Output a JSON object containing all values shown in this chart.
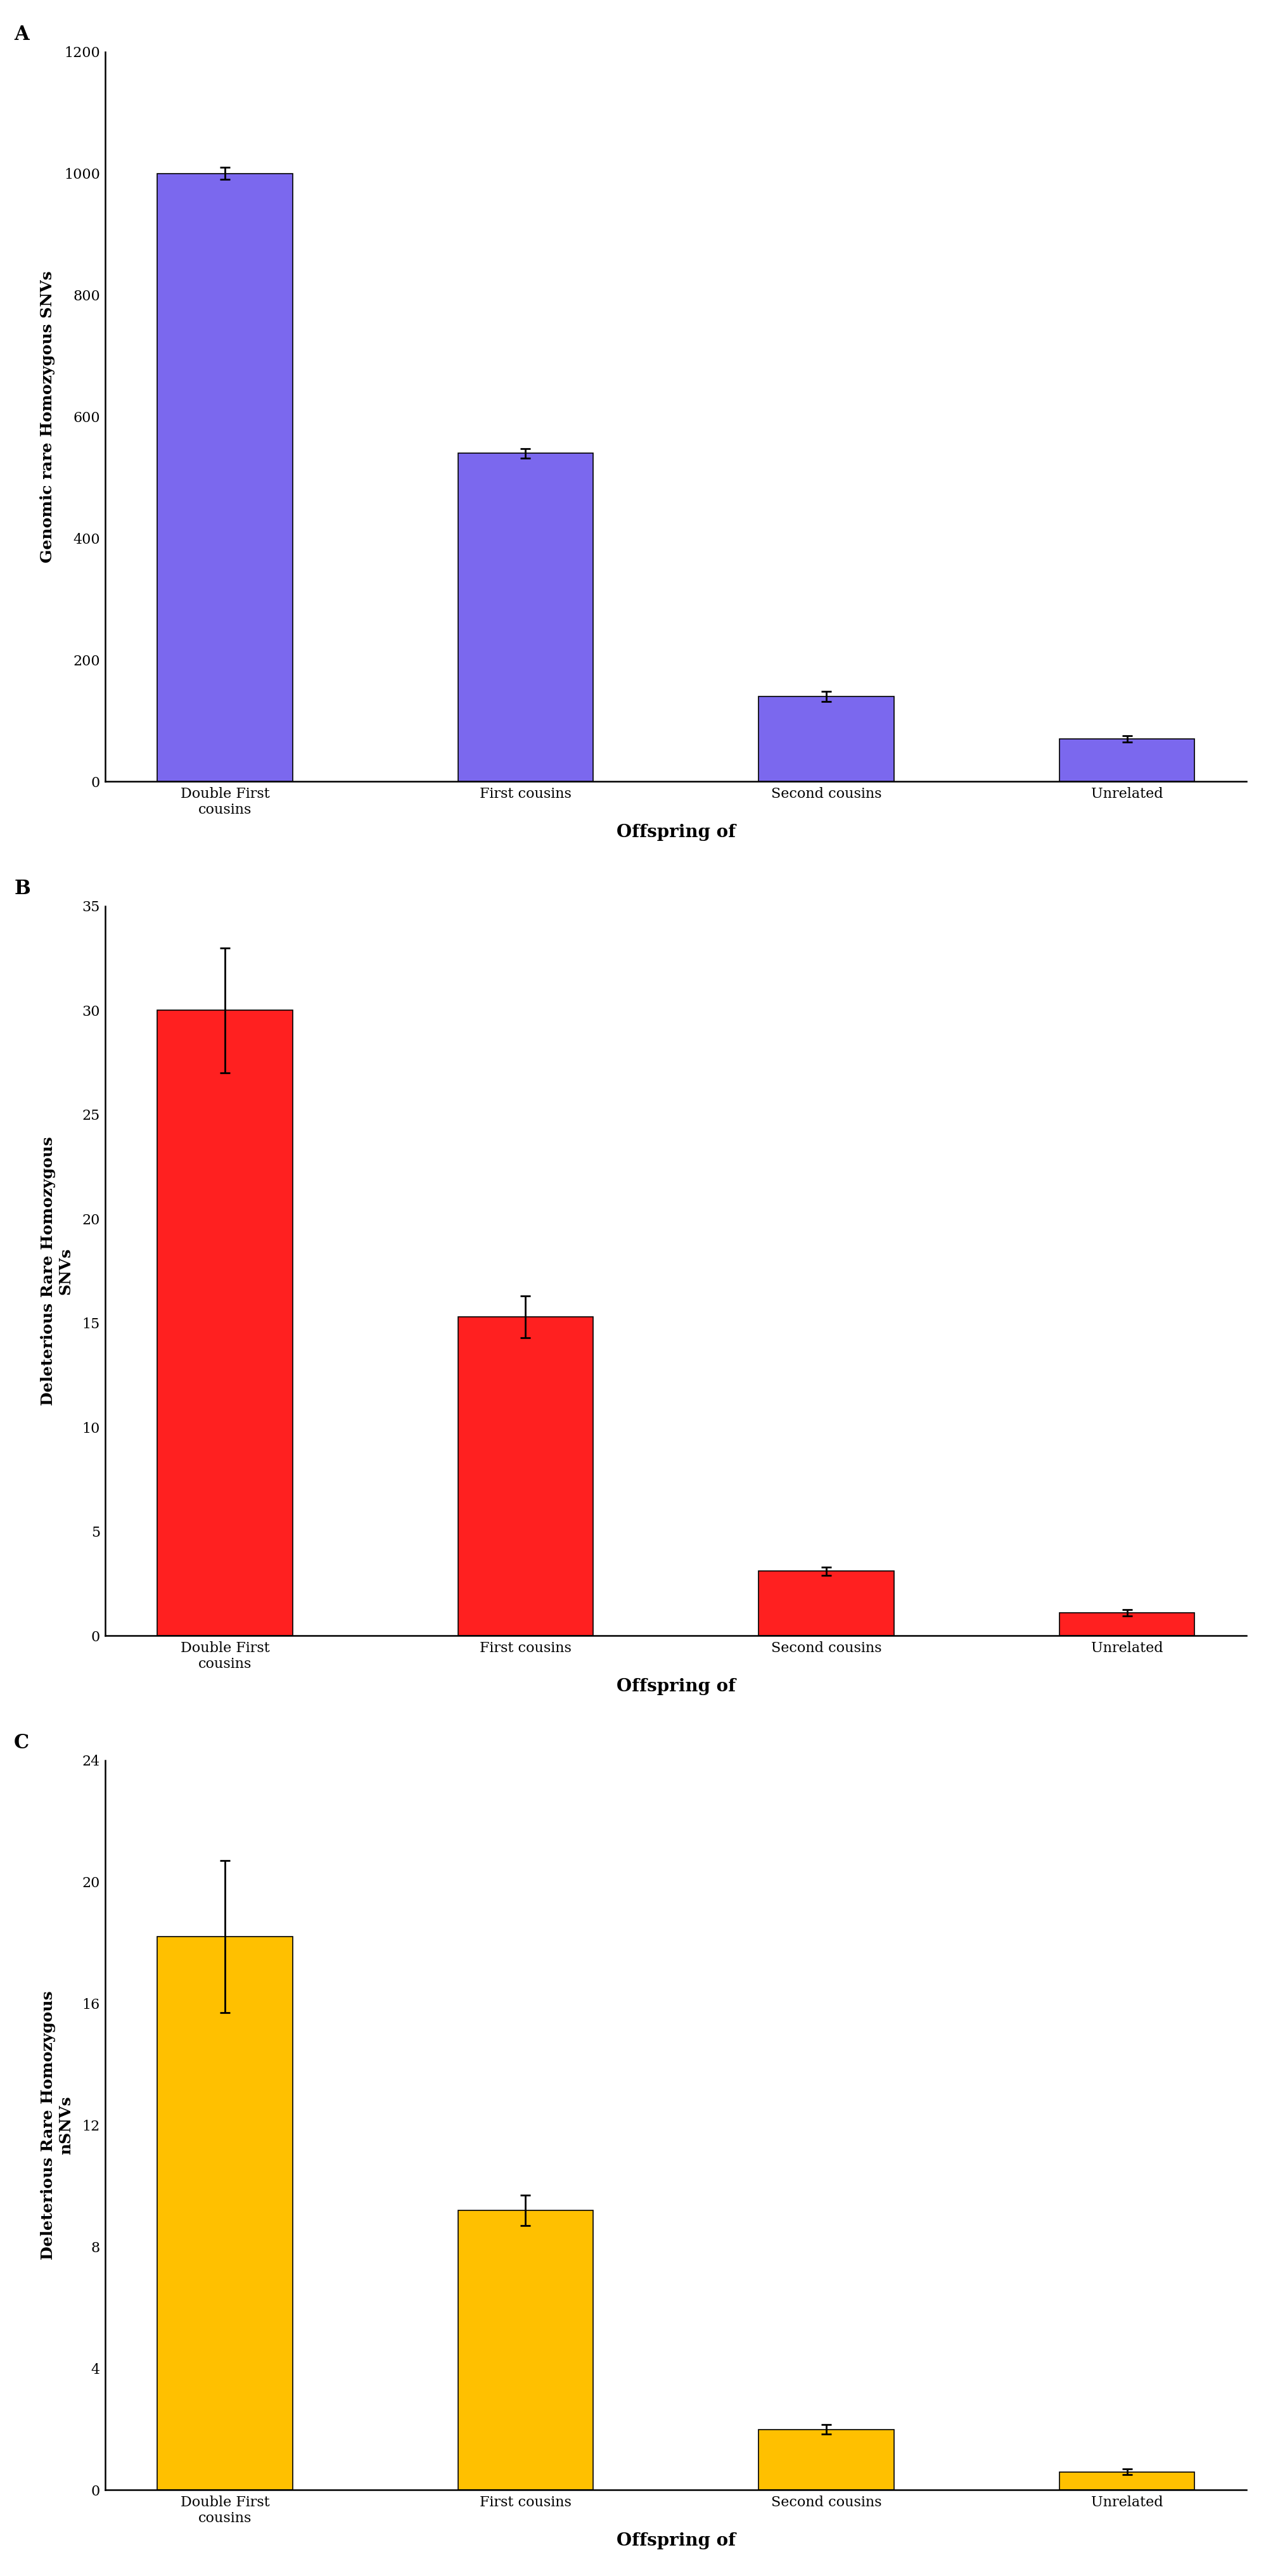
{
  "panel_A": {
    "values": [
      1000,
      540,
      140,
      70
    ],
    "errors": [
      10,
      8,
      8,
      5
    ],
    "color": "#7B68EE",
    "ylabel": "Genomic rare Homozygous SNVs",
    "ylim": [
      0,
      1200
    ],
    "yticks": [
      0,
      200,
      400,
      600,
      800,
      1000,
      1200
    ],
    "label": "A"
  },
  "panel_B": {
    "values": [
      30,
      15.3,
      3.1,
      1.1
    ],
    "errors": [
      3.0,
      1.0,
      0.2,
      0.15
    ],
    "color": "#FF2020",
    "ylabel": "Deleterious Rare Homozygous\nSNVs",
    "ylim": [
      0,
      35
    ],
    "yticks": [
      0,
      5,
      10,
      15,
      20,
      25,
      30,
      35
    ],
    "label": "B"
  },
  "panel_C": {
    "values": [
      18.2,
      9.2,
      2.0,
      0.6
    ],
    "errors": [
      2.5,
      0.5,
      0.15,
      0.1
    ],
    "color": "#FFC000",
    "ylabel": "Deleterious Rare Homozygous\nnSNVs",
    "ylim": [
      0,
      24
    ],
    "yticks": [
      0,
      4,
      8,
      12,
      16,
      20,
      24
    ],
    "label": "C"
  },
  "categories": [
    "Double First\ncousins",
    "First cousins",
    "Second cousins",
    "Unrelated"
  ],
  "xlabel": "Offspring of",
  "bar_width": 0.45,
  "background_color": "#FFFFFF",
  "axis_label_fontsize": 18,
  "tick_fontsize": 16,
  "label_fontsize": 22,
  "xlabel_fontsize": 20
}
